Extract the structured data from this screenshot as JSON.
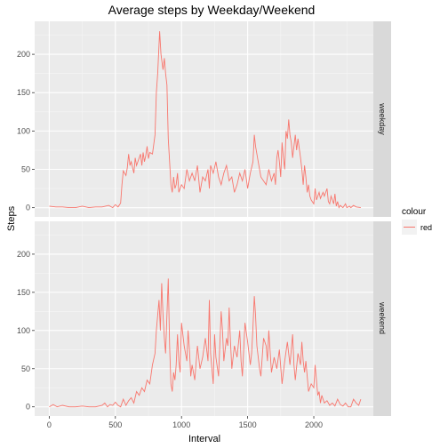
{
  "chart_data": {
    "type": "line",
    "title": "Average steps by Weekday/Weekend",
    "xlabel": "Interval",
    "ylabel": "Steps",
    "xlim": [
      -110,
      2450
    ],
    "ylim": [
      -12,
      243
    ],
    "x_ticks": [
      0,
      500,
      1000,
      1500,
      2000
    ],
    "y_ticks": [
      0,
      50,
      100,
      150,
      200
    ],
    "grid": true,
    "facets": [
      "weekday",
      "weekend"
    ],
    "legend": {
      "title": "colour",
      "entries": [
        {
          "label": "red",
          "color": "#F8766D"
        }
      ],
      "placement": "right"
    },
    "series": [
      {
        "name": "weekday",
        "color": "#F8766D",
        "points": [
          [
            0,
            2
          ],
          [
            50,
            1
          ],
          [
            100,
            1
          ],
          [
            150,
            0
          ],
          [
            200,
            0
          ],
          [
            250,
            2
          ],
          [
            300,
            0
          ],
          [
            350,
            1
          ],
          [
            400,
            1
          ],
          [
            450,
            3
          ],
          [
            480,
            0
          ],
          [
            500,
            4
          ],
          [
            520,
            1
          ],
          [
            540,
            6
          ],
          [
            550,
            30
          ],
          [
            560,
            48
          ],
          [
            580,
            42
          ],
          [
            590,
            52
          ],
          [
            600,
            70
          ],
          [
            610,
            55
          ],
          [
            620,
            60
          ],
          [
            640,
            45
          ],
          [
            650,
            65
          ],
          [
            660,
            55
          ],
          [
            670,
            60
          ],
          [
            690,
            70
          ],
          [
            700,
            55
          ],
          [
            710,
            72
          ],
          [
            720,
            60
          ],
          [
            730,
            68
          ],
          [
            740,
            80
          ],
          [
            750,
            64
          ],
          [
            760,
            72
          ],
          [
            780,
            70
          ],
          [
            790,
            82
          ],
          [
            800,
            95
          ],
          [
            810,
            150
          ],
          [
            820,
            175
          ],
          [
            835,
            230
          ],
          [
            845,
            200
          ],
          [
            860,
            180
          ],
          [
            870,
            195
          ],
          [
            880,
            175
          ],
          [
            890,
            160
          ],
          [
            900,
            90
          ],
          [
            910,
            60
          ],
          [
            920,
            30
          ],
          [
            930,
            20
          ],
          [
            940,
            40
          ],
          [
            950,
            25
          ],
          [
            960,
            30
          ],
          [
            970,
            45
          ],
          [
            980,
            20
          ],
          [
            1000,
            30
          ],
          [
            1020,
            25
          ],
          [
            1040,
            50
          ],
          [
            1060,
            35
          ],
          [
            1080,
            45
          ],
          [
            1100,
            35
          ],
          [
            1120,
            55
          ],
          [
            1140,
            20
          ],
          [
            1160,
            40
          ],
          [
            1180,
            35
          ],
          [
            1200,
            50
          ],
          [
            1210,
            25
          ],
          [
            1220,
            55
          ],
          [
            1240,
            45
          ],
          [
            1260,
            60
          ],
          [
            1280,
            40
          ],
          [
            1300,
            30
          ],
          [
            1320,
            45
          ],
          [
            1340,
            55
          ],
          [
            1360,
            35
          ],
          [
            1380,
            40
          ],
          [
            1400,
            20
          ],
          [
            1420,
            30
          ],
          [
            1440,
            45
          ],
          [
            1460,
            35
          ],
          [
            1480,
            50
          ],
          [
            1500,
            25
          ],
          [
            1520,
            45
          ],
          [
            1540,
            60
          ],
          [
            1550,
            95
          ],
          [
            1560,
            80
          ],
          [
            1570,
            70
          ],
          [
            1580,
            60
          ],
          [
            1600,
            40
          ],
          [
            1620,
            35
          ],
          [
            1640,
            30
          ],
          [
            1660,
            50
          ],
          [
            1680,
            35
          ],
          [
            1700,
            45
          ],
          [
            1710,
            30
          ],
          [
            1720,
            65
          ],
          [
            1730,
            75
          ],
          [
            1740,
            60
          ],
          [
            1750,
            40
          ],
          [
            1760,
            85
          ],
          [
            1770,
            65
          ],
          [
            1780,
            50
          ],
          [
            1790,
            100
          ],
          [
            1800,
            90
          ],
          [
            1810,
            115
          ],
          [
            1820,
            95
          ],
          [
            1830,
            85
          ],
          [
            1840,
            65
          ],
          [
            1850,
            80
          ],
          [
            1860,
            95
          ],
          [
            1870,
            75
          ],
          [
            1880,
            90
          ],
          [
            1900,
            65
          ],
          [
            1910,
            50
          ],
          [
            1920,
            30
          ],
          [
            1930,
            55
          ],
          [
            1940,
            40
          ],
          [
            1950,
            20
          ],
          [
            1960,
            30
          ],
          [
            1970,
            15
          ],
          [
            1980,
            10
          ],
          [
            2000,
            5
          ],
          [
            2010,
            25
          ],
          [
            2020,
            10
          ],
          [
            2030,
            15
          ],
          [
            2040,
            20
          ],
          [
            2050,
            12
          ],
          [
            2070,
            20
          ],
          [
            2080,
            15
          ],
          [
            2100,
            25
          ],
          [
            2110,
            8
          ],
          [
            2120,
            5
          ],
          [
            2130,
            15
          ],
          [
            2140,
            10
          ],
          [
            2150,
            5
          ],
          [
            2160,
            18
          ],
          [
            2170,
            2
          ],
          [
            2180,
            8
          ],
          [
            2190,
            0
          ],
          [
            2200,
            3
          ],
          [
            2220,
            0
          ],
          [
            2240,
            5
          ],
          [
            2250,
            0
          ],
          [
            2270,
            2
          ],
          [
            2280,
            0
          ],
          [
            2300,
            3
          ],
          [
            2320,
            1
          ],
          [
            2355,
            0
          ]
        ]
      },
      {
        "name": "weekend",
        "color": "#F8766D",
        "points": [
          [
            0,
            0
          ],
          [
            30,
            3
          ],
          [
            60,
            0
          ],
          [
            100,
            2
          ],
          [
            150,
            0
          ],
          [
            200,
            0
          ],
          [
            250,
            1
          ],
          [
            300,
            0
          ],
          [
            350,
            0
          ],
          [
            400,
            2
          ],
          [
            420,
            5
          ],
          [
            440,
            0
          ],
          [
            460,
            3
          ],
          [
            480,
            2
          ],
          [
            500,
            6
          ],
          [
            520,
            2
          ],
          [
            540,
            0
          ],
          [
            560,
            10
          ],
          [
            580,
            2
          ],
          [
            600,
            8
          ],
          [
            620,
            12
          ],
          [
            640,
            5
          ],
          [
            660,
            20
          ],
          [
            680,
            15
          ],
          [
            700,
            25
          ],
          [
            720,
            20
          ],
          [
            740,
            35
          ],
          [
            760,
            30
          ],
          [
            780,
            55
          ],
          [
            800,
            70
          ],
          [
            810,
            100
          ],
          [
            820,
            120
          ],
          [
            830,
            140
          ],
          [
            840,
            100
          ],
          [
            850,
            162
          ],
          [
            860,
            120
          ],
          [
            870,
            90
          ],
          [
            880,
            70
          ],
          [
            890,
            120
          ],
          [
            900,
            168
          ],
          [
            910,
            80
          ],
          [
            920,
            30
          ],
          [
            930,
            20
          ],
          [
            940,
            45
          ],
          [
            950,
            35
          ],
          [
            960,
            55
          ],
          [
            970,
            95
          ],
          [
            980,
            60
          ],
          [
            990,
            45
          ],
          [
            1000,
            110
          ],
          [
            1020,
            80
          ],
          [
            1040,
            60
          ],
          [
            1050,
            100
          ],
          [
            1060,
            75
          ],
          [
            1070,
            40
          ],
          [
            1080,
            55
          ],
          [
            1100,
            35
          ],
          [
            1120,
            80
          ],
          [
            1140,
            50
          ],
          [
            1160,
            65
          ],
          [
            1180,
            90
          ],
          [
            1200,
            60
          ],
          [
            1210,
            140
          ],
          [
            1220,
            70
          ],
          [
            1240,
            30
          ],
          [
            1250,
            95
          ],
          [
            1260,
            65
          ],
          [
            1280,
            40
          ],
          [
            1300,
            125
          ],
          [
            1310,
            100
          ],
          [
            1320,
            60
          ],
          [
            1340,
            90
          ],
          [
            1350,
            80
          ],
          [
            1360,
            130
          ],
          [
            1370,
            85
          ],
          [
            1380,
            50
          ],
          [
            1400,
            80
          ],
          [
            1420,
            65
          ],
          [
            1440,
            100
          ],
          [
            1450,
            60
          ],
          [
            1460,
            40
          ],
          [
            1480,
            110
          ],
          [
            1500,
            85
          ],
          [
            1520,
            55
          ],
          [
            1530,
            70
          ],
          [
            1540,
            105
          ],
          [
            1550,
            145
          ],
          [
            1560,
            120
          ],
          [
            1570,
            80
          ],
          [
            1590,
            50
          ],
          [
            1600,
            40
          ],
          [
            1620,
            90
          ],
          [
            1640,
            80
          ],
          [
            1650,
            60
          ],
          [
            1660,
            100
          ],
          [
            1680,
            45
          ],
          [
            1700,
            65
          ],
          [
            1720,
            50
          ],
          [
            1740,
            75
          ],
          [
            1760,
            30
          ],
          [
            1780,
            60
          ],
          [
            1800,
            85
          ],
          [
            1820,
            55
          ],
          [
            1840,
            95
          ],
          [
            1850,
            55
          ],
          [
            1860,
            35
          ],
          [
            1880,
            70
          ],
          [
            1900,
            55
          ],
          [
            1910,
            85
          ],
          [
            1920,
            60
          ],
          [
            1930,
            45
          ],
          [
            1940,
            60
          ],
          [
            1950,
            40
          ],
          [
            1960,
            20
          ],
          [
            1980,
            30
          ],
          [
            2000,
            25
          ],
          [
            2010,
            55
          ],
          [
            2020,
            35
          ],
          [
            2030,
            15
          ],
          [
            2040,
            20
          ],
          [
            2050,
            5
          ],
          [
            2060,
            15
          ],
          [
            2080,
            5
          ],
          [
            2100,
            8
          ],
          [
            2120,
            2
          ],
          [
            2140,
            5
          ],
          [
            2160,
            1
          ],
          [
            2180,
            10
          ],
          [
            2200,
            3
          ],
          [
            2220,
            1
          ],
          [
            2240,
            5
          ],
          [
            2260,
            0
          ],
          [
            2280,
            0
          ],
          [
            2300,
            10
          ],
          [
            2320,
            5
          ],
          [
            2340,
            2
          ],
          [
            2355,
            10
          ]
        ]
      }
    ]
  }
}
